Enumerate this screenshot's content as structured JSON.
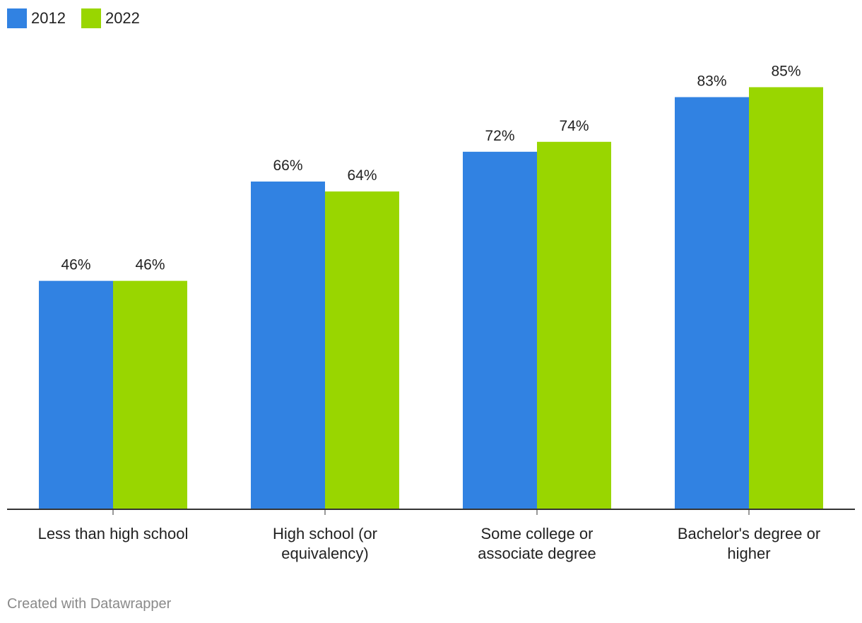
{
  "chart_data": {
    "type": "bar",
    "categories": [
      [
        "Less than high school"
      ],
      [
        "High school (or",
        "equivalency)"
      ],
      [
        "Some college or",
        "associate degree"
      ],
      [
        "Bachelor's degree or",
        "higher"
      ]
    ],
    "series": [
      {
        "name": "2012",
        "color": "#3182e2",
        "values": [
          46,
          66,
          72,
          83
        ],
        "labels": [
          "46%",
          "66%",
          "72%",
          "83%"
        ]
      },
      {
        "name": "2022",
        "color": "#99d600",
        "values": [
          46,
          64,
          74,
          85
        ],
        "labels": [
          "46%",
          "64%",
          "74%",
          "85%"
        ]
      }
    ],
    "ylim": [
      0,
      100
    ],
    "legend_position": "top-left",
    "grid": false
  },
  "footer": {
    "credit": "Created with Datawrapper"
  }
}
